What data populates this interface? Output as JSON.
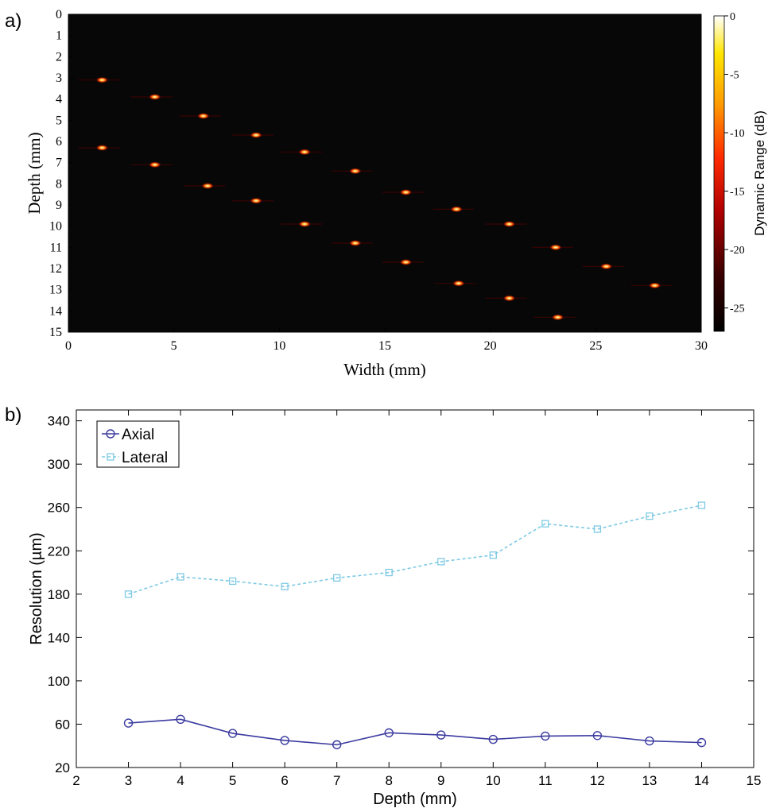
{
  "panels": {
    "a_label": "a)",
    "b_label": "b)"
  },
  "chart_data": [
    {
      "type": "heatmap",
      "panel": "a)",
      "xlabel": "Width (mm)",
      "ylabel": "Depth (mm)",
      "xlim": [
        0,
        30
      ],
      "ylim": [
        15,
        0
      ],
      "xticks": [
        "0",
        "5",
        "10",
        "15",
        "20",
        "25",
        "30"
      ],
      "yticks": [
        "0",
        "1",
        "2",
        "3",
        "4",
        "5",
        "6",
        "7",
        "8",
        "9",
        "10",
        "11",
        "12",
        "13",
        "14",
        "15"
      ],
      "background_color": "#070707",
      "colorbar": {
        "label": "Dynamic Range (dB)",
        "range": [
          -27,
          0
        ],
        "ticks": [
          "0",
          "-5",
          "-10",
          "-15",
          "-20",
          "-25"
        ],
        "colormap": "hot"
      },
      "point_targets": [
        {
          "x": 1.6,
          "y": 3.1
        },
        {
          "x": 4.1,
          "y": 3.9
        },
        {
          "x": 6.4,
          "y": 4.8
        },
        {
          "x": 8.9,
          "y": 5.7
        },
        {
          "x": 11.2,
          "y": 6.5
        },
        {
          "x": 13.6,
          "y": 7.4
        },
        {
          "x": 16.0,
          "y": 8.4
        },
        {
          "x": 18.4,
          "y": 9.2
        },
        {
          "x": 20.9,
          "y": 9.9
        },
        {
          "x": 23.1,
          "y": 11.0
        },
        {
          "x": 25.5,
          "y": 11.9
        },
        {
          "x": 27.8,
          "y": 12.8
        },
        {
          "x": 1.6,
          "y": 6.3
        },
        {
          "x": 4.1,
          "y": 7.1
        },
        {
          "x": 6.6,
          "y": 8.1
        },
        {
          "x": 8.9,
          "y": 8.8
        },
        {
          "x": 11.2,
          "y": 9.9
        },
        {
          "x": 13.6,
          "y": 10.8
        },
        {
          "x": 16.0,
          "y": 11.7
        },
        {
          "x": 18.5,
          "y": 12.7
        },
        {
          "x": 20.9,
          "y": 13.4
        },
        {
          "x": 23.2,
          "y": 14.3
        }
      ]
    },
    {
      "type": "line",
      "panel": "b)",
      "xlabel": "Depth (mm)",
      "ylabel": "Resolution (µm)",
      "xlim": [
        2,
        15
      ],
      "ylim": [
        20,
        350
      ],
      "xticks": [
        "2",
        "3",
        "4",
        "5",
        "6",
        "7",
        "8",
        "9",
        "10",
        "11",
        "12",
        "13",
        "14",
        "15"
      ],
      "yticks": [
        "20",
        "60",
        "100",
        "140",
        "180",
        "220",
        "260",
        "300",
        "340"
      ],
      "x": [
        3,
        4,
        5,
        6,
        7,
        8,
        9,
        10,
        11,
        12,
        13,
        14
      ],
      "legend_position": "top-left",
      "series": [
        {
          "name": "Axial",
          "values": [
            61,
            64.5,
            51.5,
            45,
            41,
            52,
            50,
            46,
            49,
            49.5,
            44.5,
            43
          ],
          "color": "#3b3ba0",
          "marker": "circle",
          "line": "solid"
        },
        {
          "name": "Lateral",
          "values": [
            180,
            196,
            192,
            187,
            195,
            200,
            210,
            216,
            245,
            240,
            252,
            262
          ],
          "color": "#7fcae3",
          "marker": "square",
          "line": "dashed"
        }
      ]
    }
  ]
}
